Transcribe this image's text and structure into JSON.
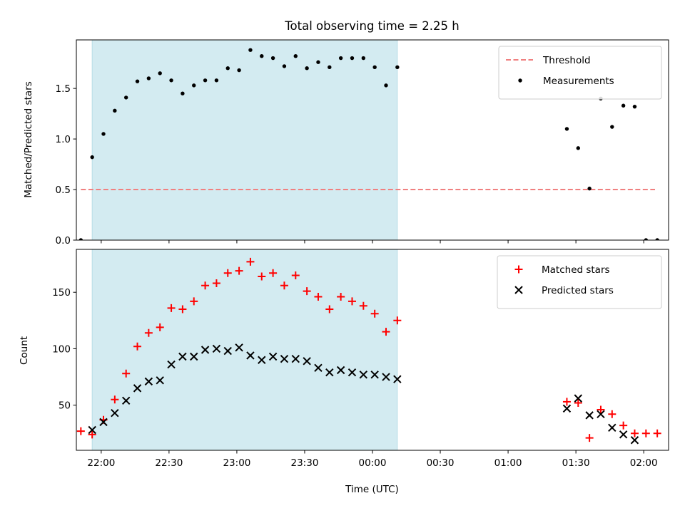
{
  "chart_data": [
    {
      "type": "scatter",
      "title": "Total observing time = 2.25 h",
      "xlabel": "",
      "ylabel": "Matched/Predicted stars",
      "xlim": [
        "21:49",
        "02:11"
      ],
      "ylim": [
        0,
        1.98
      ],
      "yticks": [
        "0.0",
        "0.5",
        "1.0",
        "1.5"
      ],
      "shaded_region": {
        "x_start": "21:56",
        "x_end": "00:11",
        "color": "#d3ebf1"
      },
      "threshold": {
        "name": "Threshold",
        "value": 0.5,
        "x_start": "21:51",
        "x_end": "02:05",
        "color": "#f08080"
      },
      "series": [
        {
          "name": "Measurements",
          "color": "#000000",
          "marker": "dot",
          "points": [
            [
              "21:51",
              0.0
            ],
            [
              "21:56",
              0.82
            ],
            [
              "22:01",
              1.05
            ],
            [
              "22:06",
              1.28
            ],
            [
              "22:11",
              1.41
            ],
            [
              "22:16",
              1.57
            ],
            [
              "22:21",
              1.6
            ],
            [
              "22:26",
              1.65
            ],
            [
              "22:31",
              1.58
            ],
            [
              "22:36",
              1.45
            ],
            [
              "22:41",
              1.53
            ],
            [
              "22:46",
              1.58
            ],
            [
              "22:51",
              1.58
            ],
            [
              "22:56",
              1.7
            ],
            [
              "23:01",
              1.68
            ],
            [
              "23:06",
              1.88
            ],
            [
              "23:11",
              1.82
            ],
            [
              "23:16",
              1.8
            ],
            [
              "23:21",
              1.72
            ],
            [
              "23:26",
              1.82
            ],
            [
              "23:31",
              1.7
            ],
            [
              "23:36",
              1.76
            ],
            [
              "23:41",
              1.71
            ],
            [
              "23:46",
              1.8
            ],
            [
              "23:51",
              1.8
            ],
            [
              "23:56",
              1.8
            ],
            [
              "00:01",
              1.71
            ],
            [
              "00:06",
              1.53
            ],
            [
              "00:11",
              1.71
            ],
            [
              "01:26",
              1.1
            ],
            [
              "01:31",
              0.91
            ],
            [
              "01:36",
              0.51
            ],
            [
              "01:41",
              1.4
            ],
            [
              "01:46",
              1.12
            ],
            [
              "01:51",
              1.33
            ],
            [
              "01:56",
              1.32
            ],
            [
              "02:01",
              0.0
            ],
            [
              "02:06",
              0.0
            ]
          ]
        }
      ],
      "legend": {
        "placement": "top-right",
        "entries": [
          "Threshold",
          "Measurements"
        ]
      }
    },
    {
      "type": "scatter",
      "title": "",
      "xlabel": "Time (UTC)",
      "ylabel": "Count",
      "xlim": [
        "21:49",
        "02:11"
      ],
      "ylim": [
        10,
        188
      ],
      "yticks": [
        "50",
        "100",
        "150"
      ],
      "xticks": [
        "22:00",
        "22:30",
        "23:00",
        "23:30",
        "00:00",
        "00:30",
        "01:00",
        "01:30",
        "02:00"
      ],
      "shaded_region": {
        "x_start": "21:56",
        "x_end": "00:11",
        "color": "#d3ebf1"
      },
      "series": [
        {
          "name": "Matched stars",
          "color": "#ff0000",
          "marker": "plus",
          "points": [
            [
              "21:51",
              27
            ],
            [
              "21:56",
              24
            ],
            [
              "22:01",
              37
            ],
            [
              "22:06",
              55
            ],
            [
              "22:11",
              78
            ],
            [
              "22:16",
              102
            ],
            [
              "22:21",
              114
            ],
            [
              "22:26",
              119
            ],
            [
              "22:31",
              136
            ],
            [
              "22:36",
              135
            ],
            [
              "22:41",
              142
            ],
            [
              "22:46",
              156
            ],
            [
              "22:51",
              158
            ],
            [
              "22:56",
              167
            ],
            [
              "23:01",
              169
            ],
            [
              "23:06",
              177
            ],
            [
              "23:11",
              164
            ],
            [
              "23:16",
              167
            ],
            [
              "23:21",
              156
            ],
            [
              "23:26",
              165
            ],
            [
              "23:31",
              151
            ],
            [
              "23:36",
              146
            ],
            [
              "23:41",
              135
            ],
            [
              "23:46",
              146
            ],
            [
              "23:51",
              142
            ],
            [
              "23:56",
              138
            ],
            [
              "00:01",
              131
            ],
            [
              "00:06",
              115
            ],
            [
              "00:11",
              125
            ],
            [
              "01:26",
              53
            ],
            [
              "01:31",
              52
            ],
            [
              "01:36",
              21
            ],
            [
              "01:41",
              46
            ],
            [
              "01:46",
              42
            ],
            [
              "01:51",
              32
            ],
            [
              "01:56",
              25
            ],
            [
              "02:01",
              25
            ],
            [
              "02:06",
              25
            ]
          ]
        },
        {
          "name": "Predicted stars",
          "color": "#000000",
          "marker": "x",
          "points": [
            [
              "21:56",
              28
            ],
            [
              "22:01",
              35
            ],
            [
              "22:06",
              43
            ],
            [
              "22:11",
              54
            ],
            [
              "22:16",
              65
            ],
            [
              "22:21",
              71
            ],
            [
              "22:26",
              72
            ],
            [
              "22:31",
              86
            ],
            [
              "22:36",
              93
            ],
            [
              "22:41",
              93
            ],
            [
              "22:46",
              99
            ],
            [
              "22:51",
              100
            ],
            [
              "22:56",
              98
            ],
            [
              "23:01",
              101
            ],
            [
              "23:06",
              94
            ],
            [
              "23:11",
              90
            ],
            [
              "23:16",
              93
            ],
            [
              "23:21",
              91
            ],
            [
              "23:26",
              91
            ],
            [
              "23:31",
              89
            ],
            [
              "23:36",
              83
            ],
            [
              "23:41",
              79
            ],
            [
              "23:46",
              81
            ],
            [
              "23:51",
              79
            ],
            [
              "23:56",
              77
            ],
            [
              "00:01",
              77
            ],
            [
              "00:06",
              75
            ],
            [
              "00:11",
              73
            ],
            [
              "01:26",
              47
            ],
            [
              "01:31",
              56
            ],
            [
              "01:36",
              41
            ],
            [
              "01:41",
              42
            ],
            [
              "01:46",
              30
            ],
            [
              "01:51",
              24
            ],
            [
              "01:56",
              19
            ]
          ]
        }
      ],
      "legend": {
        "placement": "top-right",
        "entries": [
          "Matched stars",
          "Predicted stars"
        ]
      }
    }
  ]
}
